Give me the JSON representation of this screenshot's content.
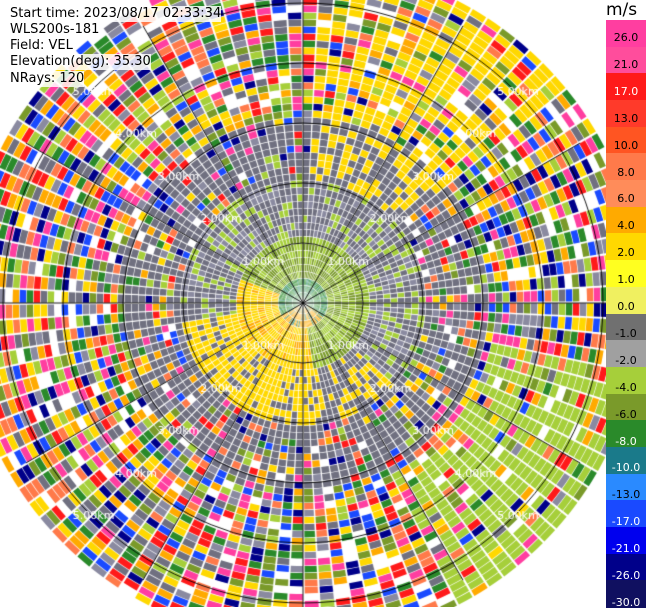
{
  "info": {
    "start_time": "Start time: 2023/08/17 02:33:34",
    "instrument": "WLS200s-181",
    "field": "Field: VEL",
    "elevation": "Elevation(deg): 35.30",
    "nrays": "NRays: 120"
  },
  "chart_data": {
    "type": "heatmap",
    "subtype": "polar-ppi",
    "title": "",
    "range_rings_km": [
      1.0,
      2.0,
      3.0,
      4.0,
      5.0
    ],
    "range_labels": [
      "1.00km",
      "2.00km",
      "3.00km",
      "4.00km",
      "5.00km"
    ],
    "n_rays": 120,
    "colorbar": {
      "unit": "m/s",
      "ticks": [
        "26.0",
        "21.0",
        "17.0",
        "13.0",
        "10.0",
        "8.0",
        "6.0",
        "4.0",
        "2.0",
        "1.0",
        "0.0",
        "-1.0",
        "-2.0",
        "-4.0",
        "-6.0",
        "-8.0",
        "-10.0",
        "-13.0",
        "-17.0",
        "-21.0",
        "-26.0",
        "-30.0"
      ],
      "colors": [
        "#ff3ea0",
        "#ff4d9c",
        "#ff1a1a",
        "#ff3a2a",
        "#ff5522",
        "#ff7a4a",
        "#ff8c5a",
        "#ffaa00",
        "#ffd800",
        "#ffff20",
        "#f0f060",
        "#707070",
        "#a0a0a0",
        "#a6cf3a",
        "#7a9a2a",
        "#2a8a2a",
        "#1a7a8a",
        "#2a8aff",
        "#1a4aff",
        "#0000ee",
        "#00008a",
        "#101060"
      ]
    }
  }
}
